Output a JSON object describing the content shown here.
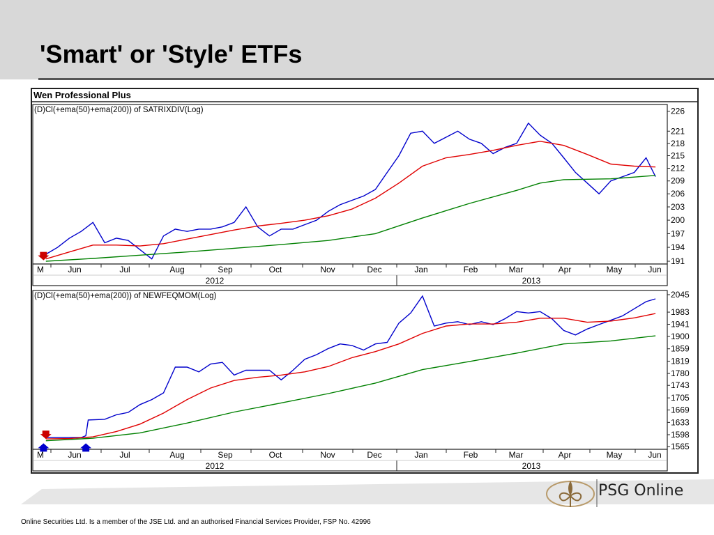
{
  "slide": {
    "title": "'Smart' or 'Style' ETFs",
    "footer": "Online Securities Ltd. Is a member of the JSE Ltd. and an authorised Financial Services Provider, FSP No. 42996",
    "logo_text": "PSG Online"
  },
  "colors": {
    "price": "#0000cc",
    "ema50": "#e00000",
    "ema200": "#008000",
    "header_band": "#d8d8d8"
  },
  "chart_data": [
    {
      "type": "line",
      "app_title": "Wen Professional Plus",
      "title": "(D)Cl(+ema(50)+ema(200)) of SATRIXDIV(Log)",
      "scale": "log",
      "ylim": [
        191,
        227
      ],
      "yticks": [
        "226",
        "221",
        "218",
        "215",
        "212",
        "209",
        "206",
        "203",
        "200",
        "197",
        "194",
        "191"
      ],
      "ytick_values": [
        226,
        221,
        218,
        215,
        212,
        209,
        206,
        203,
        200,
        197,
        194,
        191
      ],
      "months": [
        "M",
        "Jun",
        "Jul",
        "Aug",
        "Sep",
        "Oct",
        "Nov",
        "Dec",
        "Jan",
        "Feb",
        "Mar",
        "Apr",
        "May",
        "Jun"
      ],
      "years": [
        "2012",
        "2013"
      ],
      "x_range": [
        0,
        13.3
      ],
      "arrows": [
        {
          "x": 0.05,
          "y": 191.5,
          "dir": "down",
          "color": "#cc0000"
        }
      ],
      "series": [
        {
          "role": "price",
          "x": [
            0.1,
            0.35,
            0.6,
            0.85,
            1.1,
            1.35,
            1.6,
            1.85,
            2.1,
            2.35,
            2.6,
            2.85,
            3.1,
            3.35,
            3.6,
            3.85,
            4.1,
            4.35,
            4.6,
            4.85,
            5.1,
            5.35,
            5.6,
            5.85,
            6.1,
            6.35,
            6.6,
            6.85,
            7.1,
            7.35,
            7.6,
            7.85,
            8.1,
            8.35,
            8.6,
            8.85,
            9.1,
            9.35,
            9.6,
            9.85,
            10.1,
            10.35,
            10.6,
            10.85,
            11.1,
            11.35,
            11.6,
            11.85,
            12.1,
            12.35,
            12.6,
            12.85,
            13.05
          ],
          "y": [
            192.5,
            194.0,
            196.0,
            197.5,
            199.5,
            195.0,
            196.0,
            195.5,
            193.5,
            191.5,
            196.5,
            198.0,
            197.5,
            198.0,
            198.0,
            198.5,
            199.5,
            203.0,
            198.5,
            196.5,
            198.0,
            198.0,
            199.0,
            200.0,
            202.0,
            203.5,
            204.5,
            205.5,
            207.0,
            211.0,
            215.0,
            220.5,
            221.0,
            218.0,
            219.5,
            221.0,
            219.0,
            218.0,
            215.5,
            217.0,
            218.0,
            223.0,
            220.0,
            218.0,
            214.5,
            211.0,
            208.5,
            206.0,
            209.0,
            210.0,
            211.0,
            214.5,
            210.0
          ]
        },
        {
          "role": "ema50",
          "x": [
            0.1,
            0.6,
            1.1,
            1.6,
            2.1,
            2.6,
            3.1,
            3.6,
            4.1,
            4.6,
            5.1,
            5.6,
            6.1,
            6.6,
            7.1,
            7.6,
            8.1,
            8.6,
            9.1,
            9.6,
            10.1,
            10.6,
            11.1,
            11.6,
            12.1,
            12.6,
            13.05
          ],
          "y": [
            191.5,
            193.0,
            194.5,
            194.5,
            194.3,
            194.8,
            195.8,
            196.8,
            197.8,
            198.7,
            199.3,
            200.0,
            201.0,
            202.5,
            205.0,
            208.5,
            212.5,
            214.5,
            215.3,
            216.3,
            217.5,
            218.5,
            217.5,
            215.3,
            213.0,
            212.5,
            212.3
          ]
        },
        {
          "role": "ema200",
          "x": [
            0.1,
            1.1,
            2.1,
            3.1,
            4.1,
            5.1,
            6.1,
            7.1,
            8.1,
            9.1,
            10.1,
            10.6,
            11.1,
            11.6,
            12.1,
            12.6,
            13.05
          ],
          "y": [
            191.0,
            191.6,
            192.3,
            193.0,
            193.8,
            194.6,
            195.5,
            197.0,
            200.5,
            203.8,
            206.8,
            208.5,
            209.3,
            209.4,
            209.5,
            209.9,
            210.3
          ]
        }
      ]
    },
    {
      "type": "line",
      "title": "(D)Cl(+ema(50)+ema(200)) of NEWFEQMOM(Log)",
      "scale": "log",
      "ylim": [
        1565,
        2050
      ],
      "yticks": [
        "2045",
        "1983",
        "1941",
        "1900",
        "1859",
        "1819",
        "1780",
        "1743",
        "1705",
        "1669",
        "1633",
        "1598",
        "1565"
      ],
      "ytick_values": [
        2045,
        1983,
        1941,
        1900,
        1859,
        1819,
        1780,
        1743,
        1705,
        1669,
        1633,
        1598,
        1565
      ],
      "months": [
        "M",
        "Jun",
        "Jul",
        "Aug",
        "Sep",
        "Oct",
        "Nov",
        "Dec",
        "Jan",
        "Feb",
        "Mar",
        "Apr",
        "May",
        "Jun"
      ],
      "years": [
        "2012",
        "2013"
      ],
      "x_range": [
        0,
        13.3
      ],
      "arrows": [
        {
          "x": 0.1,
          "y": 1590,
          "dir": "down",
          "color": "#cc0000"
        },
        {
          "x": 0.05,
          "y": 1570,
          "dir": "up",
          "color": "#0000cc"
        },
        {
          "x": 0.95,
          "y": 1570,
          "dir": "up",
          "color": "#0000cc"
        }
      ],
      "series": [
        {
          "role": "price",
          "x": [
            0.1,
            0.35,
            0.6,
            0.85,
            0.95,
            1.0,
            1.35,
            1.6,
            1.85,
            2.1,
            2.35,
            2.6,
            2.85,
            3.1,
            3.35,
            3.6,
            3.85,
            4.1,
            4.35,
            4.6,
            4.85,
            5.1,
            5.35,
            5.6,
            5.85,
            6.1,
            6.35,
            6.6,
            6.85,
            7.1,
            7.35,
            7.6,
            7.85,
            8.1,
            8.35,
            8.6,
            8.85,
            9.1,
            9.35,
            9.6,
            9.85,
            10.1,
            10.35,
            10.6,
            10.85,
            11.1,
            11.35,
            11.6,
            11.85,
            12.1,
            12.35,
            12.6,
            12.85,
            13.05
          ],
          "y": [
            1590,
            1590,
            1590,
            1590,
            1595,
            1640,
            1642,
            1655,
            1662,
            1685,
            1700,
            1720,
            1800,
            1800,
            1785,
            1810,
            1815,
            1775,
            1790,
            1790,
            1790,
            1760,
            1790,
            1825,
            1840,
            1860,
            1875,
            1870,
            1855,
            1875,
            1880,
            1945,
            1980,
            2040,
            1935,
            1945,
            1950,
            1940,
            1950,
            1940,
            1960,
            1985,
            1980,
            1985,
            1960,
            1920,
            1905,
            1925,
            1940,
            1955,
            1970,
            1995,
            2020,
            2030
          ]
        },
        {
          "role": "ema50",
          "x": [
            0.1,
            0.6,
            1.1,
            1.6,
            2.1,
            2.6,
            3.1,
            3.6,
            4.1,
            4.6,
            5.1,
            5.6,
            6.1,
            6.6,
            7.1,
            7.6,
            8.1,
            8.6,
            9.1,
            9.6,
            10.1,
            10.6,
            11.1,
            11.6,
            12.1,
            12.6,
            13.05
          ],
          "y": [
            1586,
            1587,
            1592,
            1607,
            1628,
            1660,
            1700,
            1735,
            1758,
            1768,
            1775,
            1785,
            1802,
            1830,
            1850,
            1875,
            1910,
            1935,
            1942,
            1942,
            1948,
            1962,
            1962,
            1948,
            1952,
            1963,
            1978
          ]
        },
        {
          "role": "ema200",
          "x": [
            0.1,
            1.1,
            2.1,
            3.1,
            4.1,
            5.1,
            6.1,
            7.1,
            8.1,
            9.1,
            10.1,
            11.1,
            12.1,
            13.05
          ],
          "y": [
            1581,
            1588,
            1603,
            1631,
            1663,
            1690,
            1718,
            1750,
            1792,
            1818,
            1845,
            1875,
            1885,
            1902
          ]
        }
      ]
    }
  ]
}
